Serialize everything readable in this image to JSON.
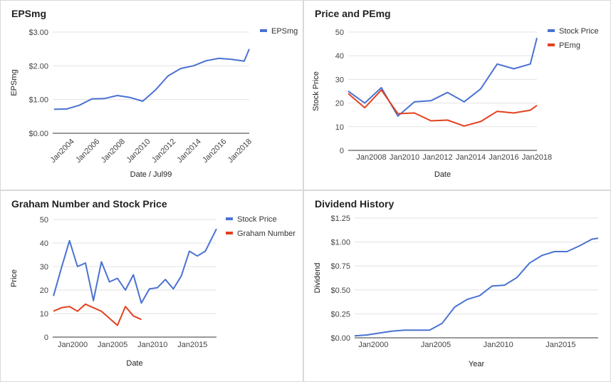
{
  "chart_data": [
    {
      "type": "line",
      "title": "EPSmg",
      "xlabel": "Date / Jul99",
      "ylabel": "EPSmg",
      "x_ticks": [
        "Jan2004",
        "Jan2006",
        "Jan2008",
        "Jan2010",
        "Jan2012",
        "Jan2014",
        "Jan2016",
        "Jan2018"
      ],
      "y_ticks": [
        "$0.00",
        "$1.00",
        "$2.00",
        "$3.00"
      ],
      "xlim": [
        2002.5,
        2018.0
      ],
      "ylim": [
        0,
        3
      ],
      "legend_position": "top-right",
      "series": [
        {
          "name": "EPSmg",
          "color": "#4a72d2",
          "x": [
            2002.6,
            2003.6,
            2004.6,
            2005.6,
            2006.6,
            2007.6,
            2008.6,
            2009.6,
            2010.6,
            2011.6,
            2012.6,
            2013.6,
            2014.6,
            2015.6,
            2016.6,
            2017.6,
            2018.0
          ],
          "y": [
            0.71,
            0.72,
            0.83,
            1.02,
            1.03,
            1.12,
            1.06,
            0.95,
            1.28,
            1.7,
            1.92,
            2.0,
            2.15,
            2.22,
            2.19,
            2.14,
            2.5
          ]
        }
      ]
    },
    {
      "type": "line",
      "title": "Price and PEmg",
      "xlabel": "Date",
      "ylabel": "Stock Price",
      "x_ticks": [
        "Jan2008",
        "Jan2010",
        "Jan2012",
        "Jan2014",
        "Jan2016",
        "Jan2018"
      ],
      "y_ticks": [
        "0",
        "10",
        "20",
        "30",
        "40",
        "50"
      ],
      "xlim": [
        2006.6,
        2018.0
      ],
      "ylim": [
        0,
        50
      ],
      "legend_position": "top-right",
      "series": [
        {
          "name": "Stock Price",
          "color": "#4a72d2",
          "x": [
            2006.6,
            2007.6,
            2008.6,
            2009.6,
            2010.6,
            2011.6,
            2012.6,
            2013.6,
            2014.6,
            2015.6,
            2016.6,
            2017.6,
            2018.0
          ],
          "y": [
            25.0,
            20.0,
            26.5,
            14.5,
            20.5,
            21.0,
            24.5,
            20.5,
            26.0,
            36.5,
            34.5,
            36.5,
            47.5
          ]
        },
        {
          "name": "PEmg",
          "color": "#e2421f",
          "x": [
            2006.6,
            2007.6,
            2008.6,
            2009.6,
            2010.6,
            2011.6,
            2012.6,
            2013.6,
            2014.6,
            2015.6,
            2016.6,
            2017.6,
            2018.0
          ],
          "y": [
            24.0,
            18.0,
            25.5,
            15.5,
            15.8,
            12.5,
            12.8,
            10.3,
            12.2,
            16.5,
            15.8,
            17.0,
            19.0
          ]
        }
      ]
    },
    {
      "type": "line",
      "title": "Graham Number and Stock Price",
      "xlabel": "Date",
      "ylabel": "Price",
      "x_ticks": [
        "Jan2000",
        "Jan2005",
        "Jan2010",
        "Jan2015"
      ],
      "y_ticks": [
        "0",
        "10",
        "20",
        "30",
        "40",
        "50"
      ],
      "xlim": [
        1997.5,
        2018.0
      ],
      "ylim": [
        0,
        50
      ],
      "legend_position": "top-right",
      "series": [
        {
          "name": "Stock Price",
          "color": "#4a72d2",
          "x": [
            1997.6,
            1998.6,
            1999.6,
            2000.6,
            2001.6,
            2002.6,
            2003.6,
            2004.6,
            2005.6,
            2006.6,
            2007.6,
            2008.6,
            2009.6,
            2010.6,
            2011.6,
            2012.6,
            2013.6,
            2014.6,
            2015.6,
            2016.6,
            2018.0
          ],
          "y": [
            17.5,
            29.5,
            41.0,
            30.0,
            31.5,
            15.5,
            32.0,
            23.5,
            25.0,
            20.0,
            26.5,
            14.5,
            20.5,
            21.0,
            24.5,
            20.5,
            26.0,
            36.5,
            34.5,
            36.5,
            46.0
          ]
        },
        {
          "name": "Graham Number",
          "color": "#e2421f",
          "x": [
            1997.6,
            1998.6,
            1999.6,
            2000.6,
            2001.6,
            2002.6,
            2003.6,
            2004.6,
            2005.6,
            2006.6,
            2007.6,
            2008.6
          ],
          "y": [
            11.0,
            12.5,
            13.0,
            11.0,
            14.0,
            12.5,
            11.0,
            8.0,
            5.0,
            13.0,
            9.0,
            7.5
          ]
        }
      ]
    },
    {
      "type": "line",
      "title": "Dividend History",
      "xlabel": "Year",
      "ylabel": "Dividend",
      "x_ticks": [
        "Jan2000",
        "Jan2005",
        "Jan2010",
        "Jan2015"
      ],
      "y_ticks": [
        "$0.00",
        "$0.25",
        "$0.50",
        "$0.75",
        "$1.00",
        "$1.25"
      ],
      "xlim": [
        1998.5,
        2018.0
      ],
      "ylim": [
        0,
        1.25
      ],
      "series": [
        {
          "name": "",
          "color": "#4a72d2",
          "x": [
            1998.5,
            1999.5,
            2000.5,
            2001.5,
            2002.5,
            2003.5,
            2004.5,
            2005.5,
            2006.5,
            2007.5,
            2008.5,
            2009.5,
            2010.5,
            2011.5,
            2012.5,
            2013.5,
            2014.5,
            2015.5,
            2016.5,
            2017.5,
            2018.0
          ],
          "y": [
            0.02,
            0.03,
            0.05,
            0.07,
            0.08,
            0.08,
            0.08,
            0.15,
            0.32,
            0.4,
            0.44,
            0.54,
            0.55,
            0.63,
            0.78,
            0.86,
            0.9,
            0.9,
            0.96,
            1.03,
            1.04
          ]
        }
      ]
    }
  ]
}
